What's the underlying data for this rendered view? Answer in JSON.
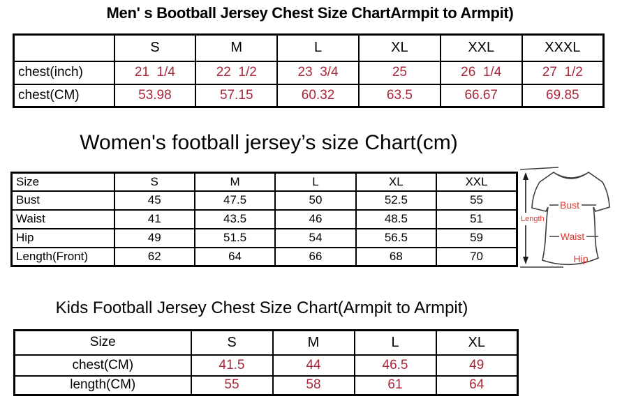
{
  "colors": {
    "value_red": "#a9273a",
    "diagram_red": "#e8352b",
    "table_border": "#000000",
    "shirt_outline": "#3d3d3d"
  },
  "men_chart": {
    "title": "Men' s Bootball Jersey Chest Size ChartArmpit to Armpit)",
    "corner": "",
    "columns": [
      "S",
      "M",
      "L",
      "XL",
      "XXL",
      "XXXL"
    ],
    "rows": [
      {
        "label": "chest(inch)",
        "values": [
          "21  1/4",
          "22  1/2",
          "23  3/4",
          "25",
          "26  1/4",
          "27  1/2"
        ]
      },
      {
        "label": "chest(CM)",
        "values": [
          "53.98",
          "57.15",
          "60.32",
          "63.5",
          "66.67",
          "69.85"
        ]
      }
    ]
  },
  "women_chart": {
    "title": "Women's football jersey’s size Chart(cm)",
    "corner": "Size",
    "columns": [
      "S",
      "M",
      "L",
      "XL",
      "XXL"
    ],
    "rows": [
      {
        "label": "Bust",
        "values": [
          "45",
          "47.5",
          "50",
          "52.5",
          "55"
        ]
      },
      {
        "label": "Waist",
        "values": [
          "41",
          "43.5",
          "46",
          "48.5",
          "51"
        ]
      },
      {
        "label": "Hip",
        "values": [
          "49",
          "51.5",
          "54",
          "56.5",
          "59"
        ]
      },
      {
        "label": "Length(Front)",
        "values": [
          "62",
          "64",
          "66",
          "68",
          "70"
        ]
      }
    ]
  },
  "kids_chart": {
    "title": "Kids Football Jersey Chest Size Chart(Armpit to Armpit)",
    "corner": "Size",
    "columns": [
      "S",
      "M",
      "L",
      "XL"
    ],
    "rows": [
      {
        "label": "chest(CM)",
        "values": [
          "41.5",
          "44",
          "46.5",
          "49"
        ]
      },
      {
        "label": "length(CM)",
        "values": [
          "55",
          "58",
          "61",
          "64"
        ]
      }
    ]
  },
  "diagram": {
    "length_label": "Length",
    "bust_label": "Bust",
    "waist_label": "Waist",
    "hip_label": "Hip"
  }
}
